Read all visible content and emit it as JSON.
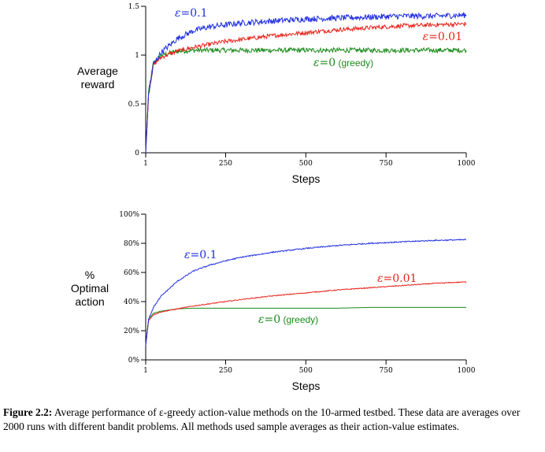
{
  "chart_data": [
    {
      "type": "line",
      "xlabel": "Steps",
      "ylabel_lines": [
        "Average",
        "reward"
      ],
      "xlim": [
        1,
        1000
      ],
      "ylim": [
        0,
        1.5
      ],
      "xticks": [
        1,
        250,
        500,
        750,
        1000
      ],
      "xtick_labels": [
        "1",
        "250",
        "500",
        "750",
        "1000"
      ],
      "yticks": [
        0,
        0.5,
        1,
        1.5
      ],
      "ytick_labels": [
        "0",
        "0.5",
        "1",
        "1.5"
      ],
      "series": [
        {
          "name": "ε=0 (greedy)",
          "label_prefix": "ε",
          "label_suffix": "=0",
          "label_extra": " (greedy)",
          "color": "#1a8a1a",
          "x": [
            1,
            10,
            25,
            50,
            100,
            150,
            200,
            250,
            300,
            400,
            500,
            600,
            700,
            800,
            900,
            1000
          ],
          "y": [
            0.0,
            0.62,
            0.92,
            1.0,
            1.04,
            1.05,
            1.05,
            1.05,
            1.05,
            1.05,
            1.05,
            1.05,
            1.05,
            1.05,
            1.05,
            1.05
          ]
        },
        {
          "name": "ε=0.01",
          "label_prefix": "ε",
          "label_suffix": "=0.01",
          "label_extra": "",
          "color": "#e8221a",
          "x": [
            1,
            10,
            25,
            50,
            100,
            150,
            200,
            250,
            300,
            400,
            500,
            600,
            700,
            800,
            900,
            1000
          ],
          "y": [
            0.0,
            0.6,
            0.9,
            0.98,
            1.04,
            1.08,
            1.11,
            1.14,
            1.16,
            1.2,
            1.23,
            1.26,
            1.28,
            1.3,
            1.31,
            1.32
          ]
        },
        {
          "name": "ε=0.1",
          "label_prefix": "ε",
          "label_suffix": "=0.1",
          "label_extra": "",
          "color": "#1f2ee0",
          "x": [
            1,
            10,
            25,
            50,
            100,
            150,
            200,
            250,
            300,
            400,
            500,
            600,
            700,
            800,
            900,
            1000
          ],
          "y": [
            0.0,
            0.6,
            0.9,
            1.03,
            1.17,
            1.25,
            1.29,
            1.31,
            1.33,
            1.35,
            1.37,
            1.38,
            1.39,
            1.4,
            1.4,
            1.41
          ]
        }
      ]
    },
    {
      "type": "line",
      "xlabel": "Steps",
      "ylabel_lines": [
        "%",
        "Optimal",
        "action"
      ],
      "xlim": [
        1,
        1000
      ],
      "ylim": [
        0,
        100
      ],
      "xticks": [
        1,
        250,
        500,
        750,
        1000
      ],
      "xtick_labels": [
        "1",
        "250",
        "500",
        "750",
        "1000"
      ],
      "yticks": [
        0,
        20,
        40,
        60,
        80,
        100
      ],
      "ytick_labels": [
        "0%",
        "20%",
        "40%",
        "60%",
        "80%",
        "100%"
      ],
      "series": [
        {
          "name": "ε=0 (greedy)",
          "label_prefix": "ε",
          "label_suffix": "=0",
          "label_extra": " (greedy)",
          "color": "#1a8a1a",
          "x": [
            1,
            10,
            25,
            50,
            100,
            150,
            200,
            250,
            300,
            400,
            500,
            600,
            700,
            800,
            900,
            1000
          ],
          "y": [
            10,
            28,
            32,
            33.5,
            35,
            35.5,
            35.5,
            35.5,
            35.5,
            35.5,
            35.5,
            35.5,
            36,
            36,
            36,
            36
          ]
        },
        {
          "name": "ε=0.01",
          "label_prefix": "ε",
          "label_suffix": "=0.01",
          "label_extra": "",
          "color": "#e8221a",
          "x": [
            1,
            10,
            25,
            50,
            100,
            150,
            200,
            250,
            300,
            400,
            500,
            600,
            700,
            800,
            900,
            1000
          ],
          "y": [
            10,
            27,
            31,
            33,
            35,
            37,
            38.5,
            40,
            41.5,
            44,
            46,
            48,
            49.5,
            51,
            52.5,
            53.5
          ]
        },
        {
          "name": "ε=0.1",
          "label_prefix": "ε",
          "label_suffix": "=0.1",
          "label_extra": "",
          "color": "#1f2ee0",
          "x": [
            1,
            10,
            25,
            50,
            100,
            150,
            200,
            250,
            300,
            400,
            500,
            600,
            700,
            800,
            900,
            1000
          ],
          "y": [
            10,
            28,
            36,
            44,
            54,
            61,
            65,
            68,
            70.5,
            74,
            76.5,
            78.5,
            80,
            81,
            82,
            82.5
          ]
        }
      ]
    }
  ],
  "caption": {
    "label": "Figure 2.2:",
    "text": "Average performance of ε-greedy action-value methods on the 10-armed testbed. These data are averages over 2000 runs with different bandit problems. All methods used sample averages as their action-value estimates."
  }
}
